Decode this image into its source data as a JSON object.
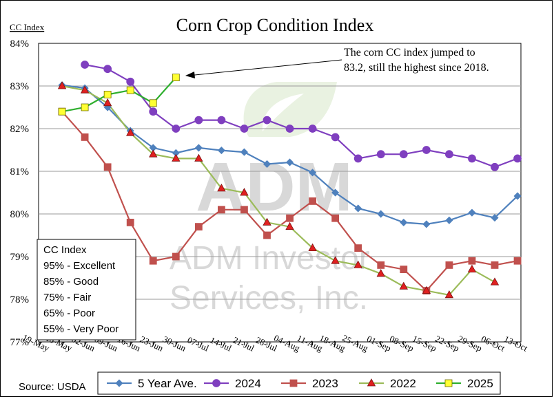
{
  "chart_data": {
    "type": "line",
    "title": "Corn Crop Condition Index",
    "ylabel": "CC Index",
    "ylim": [
      77,
      84
    ],
    "yticks": [
      77,
      78,
      79,
      80,
      81,
      82,
      83,
      84
    ],
    "ytick_labels": [
      "77%",
      "78%",
      "79%",
      "80%",
      "81%",
      "82%",
      "83%",
      "84%"
    ],
    "grid": "horizontal",
    "categories": [
      "19-May",
      "26-May",
      "02-Jun",
      "09-Jun",
      "16-Jun",
      "23-Jun",
      "30-Jun",
      "07-Jul",
      "14-Jul",
      "21-Jul",
      "28-Jul",
      "04-Aug",
      "11-Aug",
      "18-Aug",
      "25-Aug",
      "01-Sep",
      "08-Sep",
      "15-Sep",
      "22-Sep",
      "29-Sep",
      "06-Oct",
      "13-Oct"
    ],
    "series": [
      {
        "name": "5 Year Ave.",
        "color": "#4F81BD",
        "marker": "diamond",
        "values": [
          null,
          83.02,
          82.95,
          82.5,
          81.95,
          81.55,
          81.43,
          81.55,
          81.49,
          81.45,
          81.17,
          81.21,
          80.97,
          80.5,
          80.13,
          80.0,
          79.8,
          79.76,
          79.85,
          80.03,
          79.91,
          80.42
        ]
      },
      {
        "name": "2024",
        "color": "#7F3FBF",
        "marker": "circle",
        "values": [
          null,
          null,
          83.5,
          83.4,
          83.1,
          82.4,
          82.0,
          82.2,
          82.2,
          82.0,
          82.2,
          82.0,
          82.0,
          81.8,
          81.3,
          81.4,
          81.4,
          81.5,
          81.4,
          81.3,
          81.1,
          81.3
        ]
      },
      {
        "name": "2023",
        "color": "#C0504D",
        "marker": "square",
        "values": [
          null,
          82.4,
          81.8,
          81.1,
          79.8,
          78.9,
          79.0,
          79.7,
          80.1,
          80.1,
          79.5,
          79.9,
          80.3,
          79.9,
          79.2,
          78.8,
          78.7,
          78.2,
          78.8,
          78.9,
          78.8,
          78.9
        ]
      },
      {
        "name": "2022",
        "color": "#9BBB59",
        "marker": "triangle",
        "marker_color": "#E02020",
        "values": [
          null,
          83.0,
          82.9,
          82.6,
          81.9,
          81.4,
          81.3,
          81.3,
          80.6,
          80.5,
          79.8,
          79.7,
          79.2,
          78.9,
          78.8,
          78.6,
          78.3,
          78.2,
          78.1,
          78.7,
          78.4,
          null
        ]
      },
      {
        "name": "2025",
        "color": "#2EAF2E",
        "marker": "square",
        "marker_color": "#FFFF33",
        "values": [
          null,
          82.4,
          82.5,
          82.8,
          82.9,
          82.6,
          83.2,
          null,
          null,
          null,
          null,
          null,
          null,
          null,
          null,
          null,
          null,
          null,
          null,
          null,
          null,
          null
        ]
      }
    ],
    "annotation": {
      "lines": [
        "The corn CC index jumped to",
        "83.2, still the highest since 2018."
      ],
      "points_to": {
        "series": "2025",
        "x": "30-Jun",
        "y": 83.2
      }
    },
    "legend_position": "bottom"
  },
  "key_box": {
    "title": "CC Index",
    "items": [
      "95% - Excellent",
      "85% - Good",
      "75% - Fair",
      "65% - Poor",
      "55% - Very Poor"
    ]
  },
  "source": "Source: USDA",
  "watermark": {
    "logo": "ADM",
    "lines": [
      "ADM Investor",
      "Services, Inc."
    ]
  }
}
